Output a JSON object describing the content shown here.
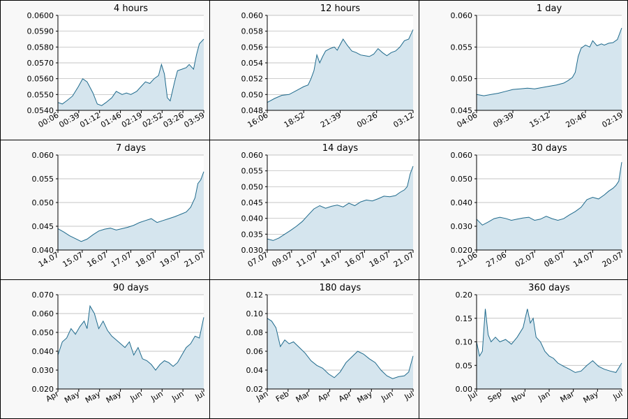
{
  "colors": {
    "line": "#1f6a8c",
    "fill": "#d5e5ee",
    "grid": "#b0b0b0",
    "plot_bg": "#ffffff",
    "panel_bg": "#f8f8f8"
  },
  "chart_data": [
    {
      "type": "area",
      "title": "4 hours",
      "ylim": [
        0.054,
        0.06
      ],
      "yticks": [
        "0.0540",
        "0.0550",
        "0.0560",
        "0.0570",
        "0.0580",
        "0.0590",
        "0.0600"
      ],
      "xticks": [
        "00:06",
        "00:39",
        "01:12",
        "01:46",
        "02:19",
        "02:52",
        "03:26",
        "03:59"
      ],
      "grid": true,
      "x": [
        0,
        0.03,
        0.06,
        0.1,
        0.14,
        0.17,
        0.2,
        0.24,
        0.27,
        0.3,
        0.33,
        0.37,
        0.4,
        0.44,
        0.47,
        0.5,
        0.54,
        0.57,
        0.6,
        0.63,
        0.66,
        0.69,
        0.71,
        0.73,
        0.75,
        0.77,
        0.8,
        0.82,
        0.85,
        0.88,
        0.9,
        0.93,
        0.95,
        0.97,
        1.0
      ],
      "y": [
        0.0545,
        0.0544,
        0.0546,
        0.0549,
        0.0555,
        0.056,
        0.0558,
        0.0551,
        0.0544,
        0.0543,
        0.0545,
        0.0548,
        0.0552,
        0.055,
        0.0551,
        0.055,
        0.0552,
        0.0555,
        0.0558,
        0.0557,
        0.056,
        0.0562,
        0.0569,
        0.0563,
        0.0548,
        0.0546,
        0.0558,
        0.0565,
        0.0566,
        0.0567,
        0.0569,
        0.0566,
        0.0575,
        0.0582,
        0.0585
      ]
    },
    {
      "type": "area",
      "title": "12 hours",
      "ylim": [
        0.048,
        0.06
      ],
      "yticks": [
        "0.048",
        "0.050",
        "0.052",
        "0.054",
        "0.056",
        "0.058",
        "0.060"
      ],
      "xticks": [
        "16:06",
        "18:52",
        "21:39",
        "00:26",
        "03:12"
      ],
      "grid": true,
      "x": [
        0,
        0.05,
        0.1,
        0.15,
        0.2,
        0.25,
        0.28,
        0.3,
        0.32,
        0.34,
        0.36,
        0.38,
        0.4,
        0.43,
        0.46,
        0.48,
        0.5,
        0.52,
        0.55,
        0.58,
        0.61,
        0.64,
        0.67,
        0.7,
        0.73,
        0.76,
        0.79,
        0.82,
        0.85,
        0.88,
        0.91,
        0.94,
        0.97,
        1.0
      ],
      "y": [
        0.049,
        0.0495,
        0.0499,
        0.05,
        0.0505,
        0.051,
        0.0512,
        0.052,
        0.053,
        0.055,
        0.054,
        0.0548,
        0.0555,
        0.0558,
        0.056,
        0.0556,
        0.0563,
        0.057,
        0.0562,
        0.0555,
        0.0553,
        0.055,
        0.0549,
        0.0548,
        0.0551,
        0.0558,
        0.0553,
        0.0549,
        0.0553,
        0.0555,
        0.056,
        0.0568,
        0.057,
        0.0582
      ]
    },
    {
      "type": "area",
      "title": "1 day",
      "ylim": [
        0.045,
        0.06
      ],
      "yticks": [
        "0.045",
        "0.050",
        "0.055",
        "0.060"
      ],
      "xticks": [
        "04:06",
        "09:39",
        "15:12",
        "20:46",
        "02:19"
      ],
      "grid": true,
      "x": [
        0,
        0.05,
        0.1,
        0.15,
        0.2,
        0.25,
        0.3,
        0.35,
        0.4,
        0.45,
        0.5,
        0.55,
        0.6,
        0.63,
        0.66,
        0.68,
        0.7,
        0.72,
        0.75,
        0.78,
        0.8,
        0.83,
        0.86,
        0.88,
        0.91,
        0.94,
        0.97,
        1.0
      ],
      "y": [
        0.0475,
        0.0473,
        0.0475,
        0.0477,
        0.048,
        0.0483,
        0.0484,
        0.0485,
        0.0484,
        0.0486,
        0.0488,
        0.049,
        0.0493,
        0.0497,
        0.0502,
        0.051,
        0.0535,
        0.0548,
        0.0553,
        0.055,
        0.056,
        0.0552,
        0.0555,
        0.0553,
        0.0556,
        0.0557,
        0.0562,
        0.058
      ]
    },
    {
      "type": "area",
      "title": "7 days",
      "ylim": [
        0.04,
        0.06
      ],
      "yticks": [
        "0.040",
        "0.045",
        "0.050",
        "0.055",
        "0.060"
      ],
      "xticks": [
        "14.07",
        "15.07",
        "16.07",
        "17.07",
        "18.07",
        "19.07",
        "21.07"
      ],
      "grid": true,
      "x": [
        0,
        0.04,
        0.08,
        0.12,
        0.16,
        0.2,
        0.24,
        0.28,
        0.32,
        0.36,
        0.4,
        0.44,
        0.48,
        0.52,
        0.56,
        0.6,
        0.64,
        0.68,
        0.72,
        0.76,
        0.8,
        0.84,
        0.88,
        0.91,
        0.94,
        0.96,
        0.98,
        1.0
      ],
      "y": [
        0.0445,
        0.0438,
        0.043,
        0.0424,
        0.0418,
        0.0423,
        0.0432,
        0.044,
        0.0444,
        0.0446,
        0.0442,
        0.0445,
        0.0448,
        0.0452,
        0.0458,
        0.0462,
        0.0466,
        0.0458,
        0.0462,
        0.0466,
        0.047,
        0.0475,
        0.048,
        0.049,
        0.051,
        0.054,
        0.0548,
        0.0565
      ]
    },
    {
      "type": "area",
      "title": "14 days",
      "ylim": [
        0.03,
        0.06
      ],
      "yticks": [
        "0.030",
        "0.035",
        "0.040",
        "0.045",
        "0.050",
        "0.055",
        "0.060"
      ],
      "xticks": [
        "07.07",
        "09.07",
        "11.07",
        "14.07",
        "16.07",
        "18.07",
        "21.07"
      ],
      "grid": true,
      "x": [
        0,
        0.04,
        0.08,
        0.12,
        0.16,
        0.2,
        0.24,
        0.28,
        0.32,
        0.36,
        0.4,
        0.44,
        0.48,
        0.52,
        0.56,
        0.6,
        0.64,
        0.68,
        0.72,
        0.76,
        0.8,
        0.84,
        0.88,
        0.91,
        0.94,
        0.96,
        0.98,
        1.0
      ],
      "y": [
        0.0335,
        0.033,
        0.0338,
        0.035,
        0.0362,
        0.0375,
        0.039,
        0.041,
        0.043,
        0.044,
        0.0432,
        0.0438,
        0.0442,
        0.0436,
        0.0448,
        0.044,
        0.0452,
        0.0458,
        0.0455,
        0.0462,
        0.047,
        0.0468,
        0.0472,
        0.0482,
        0.049,
        0.05,
        0.054,
        0.0565
      ]
    },
    {
      "type": "area",
      "title": "30 days",
      "ylim": [
        0.02,
        0.06
      ],
      "yticks": [
        "0.020",
        "0.030",
        "0.040",
        "0.050",
        "0.060"
      ],
      "xticks": [
        "21.06",
        "27.06",
        "02.07",
        "08.07",
        "14.07",
        "20.07"
      ],
      "grid": true,
      "x": [
        0,
        0.04,
        0.08,
        0.12,
        0.16,
        0.2,
        0.24,
        0.28,
        0.32,
        0.36,
        0.4,
        0.44,
        0.48,
        0.52,
        0.56,
        0.6,
        0.64,
        0.68,
        0.72,
        0.76,
        0.8,
        0.84,
        0.88,
        0.91,
        0.94,
        0.96,
        0.98,
        1.0
      ],
      "y": [
        0.033,
        0.0305,
        0.0318,
        0.0332,
        0.0338,
        0.0333,
        0.0325,
        0.033,
        0.0335,
        0.0338,
        0.0325,
        0.033,
        0.0342,
        0.0332,
        0.0325,
        0.0332,
        0.0348,
        0.0362,
        0.038,
        0.0412,
        0.0422,
        0.0415,
        0.0432,
        0.0448,
        0.046,
        0.0472,
        0.049,
        0.057
      ]
    },
    {
      "type": "area",
      "title": "90 days",
      "ylim": [
        0.02,
        0.07
      ],
      "yticks": [
        "0.020",
        "0.030",
        "0.040",
        "0.050",
        "0.060",
        "0.070"
      ],
      "xticks": [
        "Apr",
        "May",
        "May",
        "May",
        "Jun",
        "Jun",
        "Jun",
        "Jul"
      ],
      "grid": true,
      "x": [
        0,
        0.03,
        0.06,
        0.09,
        0.12,
        0.15,
        0.18,
        0.2,
        0.22,
        0.25,
        0.28,
        0.31,
        0.34,
        0.37,
        0.4,
        0.43,
        0.46,
        0.49,
        0.52,
        0.55,
        0.58,
        0.61,
        0.64,
        0.67,
        0.7,
        0.73,
        0.76,
        0.79,
        0.82,
        0.85,
        0.88,
        0.91,
        0.94,
        0.97,
        1.0
      ],
      "y": [
        0.038,
        0.045,
        0.047,
        0.052,
        0.049,
        0.053,
        0.056,
        0.052,
        0.064,
        0.06,
        0.052,
        0.056,
        0.051,
        0.048,
        0.046,
        0.044,
        0.042,
        0.045,
        0.038,
        0.042,
        0.036,
        0.035,
        0.033,
        0.03,
        0.033,
        0.035,
        0.034,
        0.032,
        0.034,
        0.038,
        0.042,
        0.044,
        0.048,
        0.047,
        0.058
      ]
    },
    {
      "type": "area",
      "title": "180 days",
      "ylim": [
        0.02,
        0.12
      ],
      "yticks": [
        "0.02",
        "0.04",
        "0.06",
        "0.08",
        "0.10",
        "0.12"
      ],
      "xticks": [
        "Jan",
        "Feb",
        "Mar",
        "Apr",
        "Apr",
        "May",
        "Jun",
        "Jul"
      ],
      "grid": true,
      "x": [
        0,
        0.03,
        0.06,
        0.09,
        0.12,
        0.15,
        0.18,
        0.22,
        0.26,
        0.3,
        0.34,
        0.38,
        0.42,
        0.46,
        0.5,
        0.54,
        0.58,
        0.62,
        0.66,
        0.7,
        0.74,
        0.78,
        0.82,
        0.86,
        0.9,
        0.94,
        0.97,
        1.0
      ],
      "y": [
        0.095,
        0.092,
        0.085,
        0.065,
        0.072,
        0.068,
        0.07,
        0.064,
        0.058,
        0.05,
        0.045,
        0.042,
        0.036,
        0.032,
        0.038,
        0.048,
        0.054,
        0.06,
        0.057,
        0.052,
        0.048,
        0.04,
        0.034,
        0.031,
        0.033,
        0.034,
        0.038,
        0.055
      ]
    },
    {
      "type": "area",
      "title": "360 days",
      "ylim": [
        0.0,
        0.2
      ],
      "yticks": [
        "0.00",
        "0.05",
        "0.10",
        "0.15",
        "0.20"
      ],
      "xticks": [
        "Jul",
        "Sep",
        "Nov",
        "Jan",
        "Mar",
        "May",
        "Jul"
      ],
      "grid": true,
      "x": [
        0,
        0.02,
        0.04,
        0.06,
        0.08,
        0.1,
        0.13,
        0.16,
        0.2,
        0.24,
        0.28,
        0.32,
        0.35,
        0.37,
        0.39,
        0.41,
        0.44,
        0.47,
        0.5,
        0.53,
        0.56,
        0.6,
        0.64,
        0.68,
        0.72,
        0.76,
        0.8,
        0.84,
        0.88,
        0.92,
        0.96,
        1.0
      ],
      "y": [
        0.1,
        0.07,
        0.08,
        0.17,
        0.115,
        0.1,
        0.11,
        0.1,
        0.105,
        0.095,
        0.11,
        0.13,
        0.17,
        0.14,
        0.15,
        0.11,
        0.1,
        0.08,
        0.07,
        0.065,
        0.055,
        0.048,
        0.042,
        0.035,
        0.038,
        0.05,
        0.06,
        0.048,
        0.042,
        0.038,
        0.035,
        0.055
      ]
    }
  ]
}
